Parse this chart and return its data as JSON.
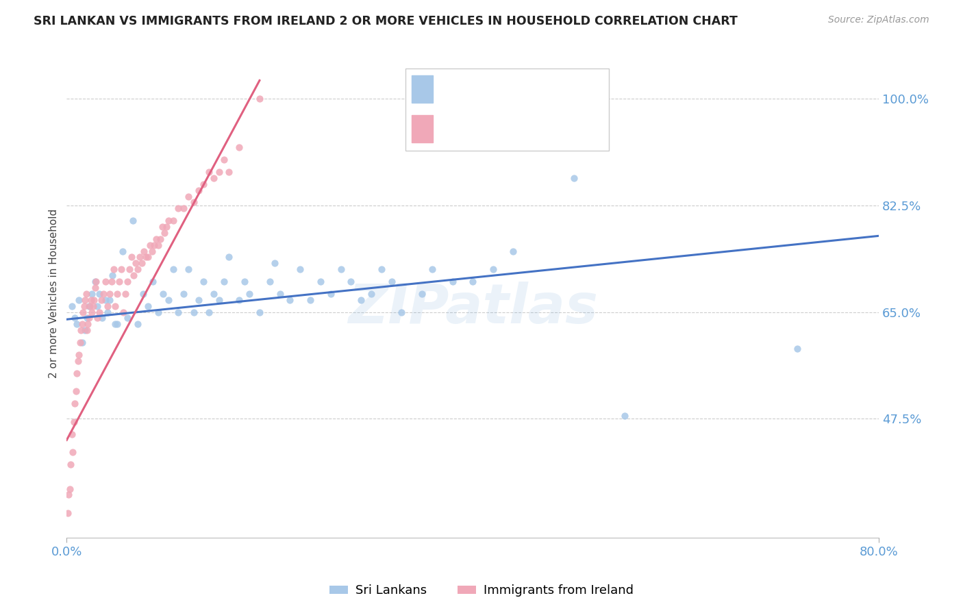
{
  "title": "SRI LANKAN VS IMMIGRANTS FROM IRELAND 2 OR MORE VEHICLES IN HOUSEHOLD CORRELATION CHART",
  "source": "Source: ZipAtlas.com",
  "ylabel": "2 or more Vehicles in Household",
  "ytick_labels": [
    "47.5%",
    "65.0%",
    "82.5%",
    "100.0%"
  ],
  "ytick_values": [
    0.475,
    0.65,
    0.825,
    1.0
  ],
  "xmin": 0.0,
  "xmax": 0.8,
  "ymin": 0.28,
  "ymax": 1.08,
  "watermark": "ZIPatlas",
  "legend_label_blue": "Sri Lankans",
  "legend_label_pink": "Immigrants from Ireland",
  "blue_color": "#A8C8E8",
  "pink_color": "#F0A8B8",
  "blue_line_color": "#4472C4",
  "pink_line_color": "#E06080",
  "blue_r_color": "#4472C4",
  "blue_n_color": "#4472C4",
  "pink_r_color": "#E06080",
  "pink_n_color": "#E06080",
  "sri_lankan_x": [
    0.005,
    0.008,
    0.01,
    0.012,
    0.015,
    0.018,
    0.02,
    0.022,
    0.025,
    0.028,
    0.03,
    0.032,
    0.035,
    0.038,
    0.04,
    0.042,
    0.045,
    0.048,
    0.05,
    0.055,
    0.06,
    0.065,
    0.07,
    0.075,
    0.08,
    0.085,
    0.09,
    0.095,
    0.1,
    0.105,
    0.11,
    0.115,
    0.12,
    0.125,
    0.13,
    0.135,
    0.14,
    0.145,
    0.15,
    0.155,
    0.16,
    0.17,
    0.175,
    0.18,
    0.19,
    0.2,
    0.205,
    0.21,
    0.22,
    0.23,
    0.24,
    0.25,
    0.26,
    0.27,
    0.28,
    0.29,
    0.3,
    0.31,
    0.32,
    0.33,
    0.35,
    0.36,
    0.38,
    0.4,
    0.42,
    0.44,
    0.5,
    0.55,
    0.72
  ],
  "sri_lankan_y": [
    0.66,
    0.64,
    0.63,
    0.67,
    0.6,
    0.62,
    0.64,
    0.66,
    0.68,
    0.7,
    0.66,
    0.68,
    0.64,
    0.67,
    0.65,
    0.67,
    0.71,
    0.63,
    0.63,
    0.75,
    0.64,
    0.8,
    0.63,
    0.68,
    0.66,
    0.7,
    0.65,
    0.68,
    0.67,
    0.72,
    0.65,
    0.68,
    0.72,
    0.65,
    0.67,
    0.7,
    0.65,
    0.68,
    0.67,
    0.7,
    0.74,
    0.67,
    0.7,
    0.68,
    0.65,
    0.7,
    0.73,
    0.68,
    0.67,
    0.72,
    0.67,
    0.7,
    0.68,
    0.72,
    0.7,
    0.67,
    0.68,
    0.72,
    0.7,
    0.65,
    0.68,
    0.72,
    0.7,
    0.7,
    0.72,
    0.75,
    0.87,
    0.48,
    0.59
  ],
  "ireland_x": [
    0.001,
    0.002,
    0.003,
    0.004,
    0.005,
    0.006,
    0.007,
    0.008,
    0.009,
    0.01,
    0.011,
    0.012,
    0.013,
    0.014,
    0.015,
    0.016,
    0.017,
    0.018,
    0.019,
    0.02,
    0.021,
    0.022,
    0.023,
    0.024,
    0.025,
    0.026,
    0.027,
    0.028,
    0.029,
    0.03,
    0.032,
    0.034,
    0.036,
    0.038,
    0.04,
    0.042,
    0.044,
    0.046,
    0.048,
    0.05,
    0.052,
    0.054,
    0.056,
    0.058,
    0.06,
    0.062,
    0.064,
    0.066,
    0.068,
    0.07,
    0.072,
    0.074,
    0.076,
    0.078,
    0.08,
    0.082,
    0.084,
    0.086,
    0.088,
    0.09,
    0.092,
    0.094,
    0.096,
    0.098,
    0.1,
    0.105,
    0.11,
    0.115,
    0.12,
    0.125,
    0.13,
    0.135,
    0.14,
    0.145,
    0.15,
    0.155,
    0.16,
    0.17,
    0.19
  ],
  "ireland_y": [
    0.32,
    0.35,
    0.36,
    0.4,
    0.45,
    0.42,
    0.47,
    0.5,
    0.52,
    0.55,
    0.57,
    0.58,
    0.6,
    0.62,
    0.63,
    0.65,
    0.66,
    0.67,
    0.68,
    0.62,
    0.63,
    0.64,
    0.66,
    0.67,
    0.65,
    0.66,
    0.67,
    0.69,
    0.7,
    0.64,
    0.65,
    0.67,
    0.68,
    0.7,
    0.66,
    0.68,
    0.7,
    0.72,
    0.66,
    0.68,
    0.7,
    0.72,
    0.65,
    0.68,
    0.7,
    0.72,
    0.74,
    0.71,
    0.73,
    0.72,
    0.74,
    0.73,
    0.75,
    0.74,
    0.74,
    0.76,
    0.75,
    0.76,
    0.77,
    0.76,
    0.77,
    0.79,
    0.78,
    0.79,
    0.8,
    0.8,
    0.82,
    0.82,
    0.84,
    0.83,
    0.85,
    0.86,
    0.88,
    0.87,
    0.88,
    0.9,
    0.88,
    0.92,
    1.0
  ],
  "blue_trend_x": [
    0.0,
    0.8
  ],
  "blue_trend_y": [
    0.638,
    0.775
  ],
  "pink_trend_x": [
    0.0,
    0.19
  ],
  "pink_trend_y": [
    0.44,
    1.03
  ]
}
